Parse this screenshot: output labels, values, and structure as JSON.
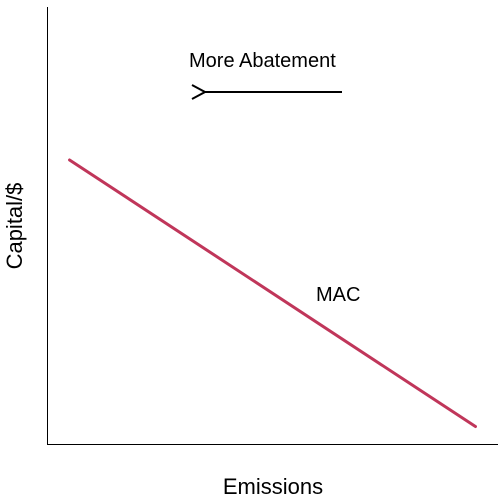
{
  "chart_data": {
    "type": "line",
    "title": "",
    "xlabel": "Emissions",
    "ylabel": "Capital/$",
    "xlim": [
      0,
      1
    ],
    "ylim": [
      0,
      1
    ],
    "grid": false,
    "series": [
      {
        "name": "MAC",
        "color": "#c0365a",
        "x": [
          0.05,
          0.95
        ],
        "y": [
          0.65,
          0.04
        ]
      }
    ],
    "annotations": [
      {
        "text": "More Abatement",
        "arrow": "left"
      }
    ]
  }
}
